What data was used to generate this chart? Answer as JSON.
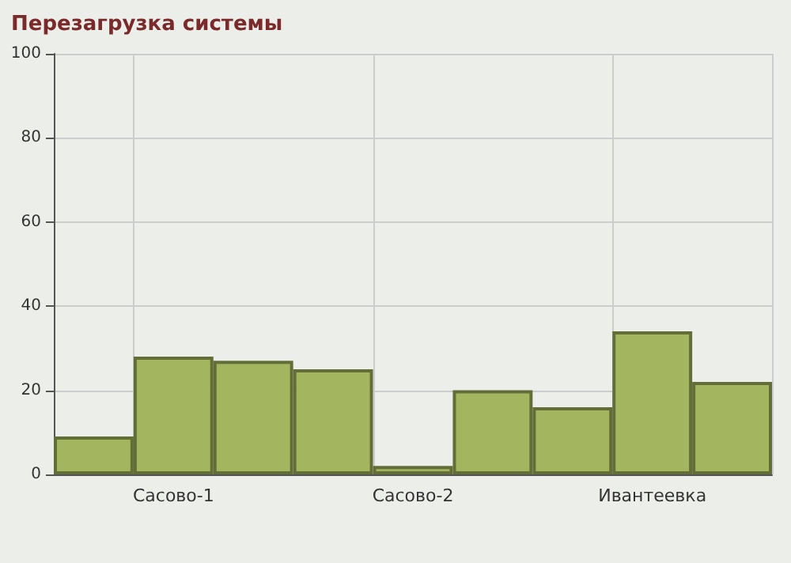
{
  "chart_data": {
    "type": "bar",
    "title": "Перезагрузка системы",
    "categories": [
      null,
      "Сасово-1",
      null,
      null,
      "Сасово-2",
      null,
      null,
      "Ивантеевка",
      null
    ],
    "values": [
      9,
      28,
      27,
      25,
      2,
      20,
      16,
      34,
      22
    ],
    "color": "#a3b55e",
    "ylim": [
      0,
      100
    ],
    "yticks": [
      0,
      20,
      40,
      60,
      80,
      100
    ],
    "grid": true
  }
}
